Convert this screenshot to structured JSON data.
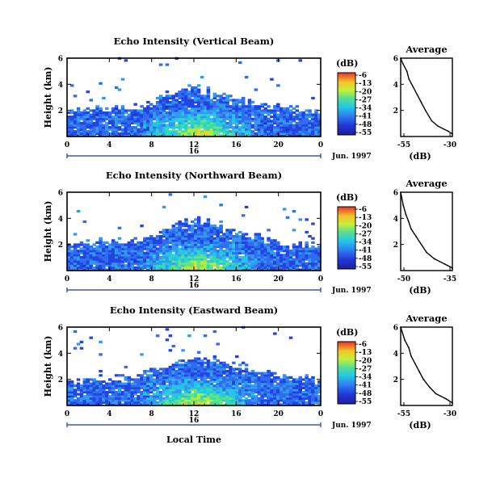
{
  "figure": {
    "xlabel": "Local Time",
    "date_label": "Jun. 1997",
    "day_label": "16"
  },
  "chart_data": [
    {
      "type": "heatmap",
      "title": "Echo Intensity (Vertical Beam)",
      "xlabel": "Local Time",
      "ylabel": "Height (km)",
      "x_ticks": [
        "0",
        "4",
        "8",
        "12",
        "16",
        "20",
        "0"
      ],
      "y_ticks": [
        "2",
        "4",
        "6"
      ],
      "xlim": [
        0,
        24
      ],
      "ylim": [
        0,
        6
      ],
      "colorbar": {
        "label": "(dB)",
        "ticks": [
          "-6",
          "-13",
          "-20",
          "-27",
          "-34",
          "-41",
          "-48",
          "-55"
        ],
        "range": [
          -55,
          -6
        ]
      },
      "profile_envelope": [
        {
          "time": 0,
          "top_km": 1.8
        },
        {
          "time": 3,
          "top_km": 2.2
        },
        {
          "time": 6,
          "top_km": 2.1
        },
        {
          "time": 9,
          "top_km": 3.0
        },
        {
          "time": 11,
          "top_km": 3.8
        },
        {
          "time": 13,
          "top_km": 3.6
        },
        {
          "time": 15,
          "top_km": 3.1
        },
        {
          "time": 18,
          "top_km": 2.5
        },
        {
          "time": 21,
          "top_km": 2.2
        },
        {
          "time": 24,
          "top_km": 1.9
        }
      ],
      "average": {
        "title": "Average",
        "xlabel": "(dB)",
        "x_ticks": [
          "-55",
          "-30"
        ],
        "y_ticks": [
          "2",
          "4",
          "6"
        ],
        "xlim": [
          -55,
          -30
        ],
        "ylim": [
          0,
          6
        ],
        "points": [
          {
            "db": -29.0,
            "height_km": 0.2
          },
          {
            "db": -32.0,
            "height_km": 0.4
          },
          {
            "db": -37.0,
            "height_km": 0.8
          },
          {
            "db": -40.0,
            "height_km": 1.2
          },
          {
            "db": -43.0,
            "height_km": 2.0
          },
          {
            "db": -45.0,
            "height_km": 2.6
          },
          {
            "db": -47.0,
            "height_km": 3.2
          },
          {
            "db": -49.0,
            "height_km": 3.8
          },
          {
            "db": -51.0,
            "height_km": 4.4
          },
          {
            "db": -52.0,
            "height_km": 5.0
          },
          {
            "db": -54.0,
            "height_km": 5.6
          },
          {
            "db": -55.0,
            "height_km": 6.0
          }
        ]
      }
    },
    {
      "type": "heatmap",
      "title": "Echo Intensity (Northward Beam)",
      "xlabel": "Local Time",
      "ylabel": "Height (km)",
      "x_ticks": [
        "0",
        "4",
        "8",
        "12",
        "16",
        "20",
        "0"
      ],
      "y_ticks": [
        "2",
        "4",
        "6"
      ],
      "xlim": [
        0,
        24
      ],
      "ylim": [
        0,
        6
      ],
      "colorbar": {
        "label": "(dB)",
        "ticks": [
          "-6",
          "-13",
          "-20",
          "-27",
          "-34",
          "-41",
          "-48",
          "-55"
        ],
        "range": [
          -55,
          -6
        ]
      },
      "profile_envelope": [
        {
          "time": 0,
          "top_km": 1.9
        },
        {
          "time": 3,
          "top_km": 2.3
        },
        {
          "time": 6,
          "top_km": 2.2
        },
        {
          "time": 9,
          "top_km": 3.0
        },
        {
          "time": 11,
          "top_km": 3.8
        },
        {
          "time": 13,
          "top_km": 3.9
        },
        {
          "time": 15,
          "top_km": 3.4
        },
        {
          "time": 18,
          "top_km": 2.6
        },
        {
          "time": 21,
          "top_km": 2.0
        },
        {
          "time": 24,
          "top_km": 1.9
        }
      ],
      "average": {
        "title": "Average",
        "xlabel": "(dB)",
        "x_ticks": [
          "-50",
          "-35"
        ],
        "y_ticks": [
          "2",
          "4",
          "6"
        ],
        "xlim": [
          -52,
          -32
        ],
        "ylim": [
          0,
          6
        ],
        "points": [
          {
            "db": -32.0,
            "height_km": 0.2
          },
          {
            "db": -35.0,
            "height_km": 0.5
          },
          {
            "db": -39.0,
            "height_km": 0.9
          },
          {
            "db": -42.0,
            "height_km": 1.4
          },
          {
            "db": -44.0,
            "height_km": 2.0
          },
          {
            "db": -46.0,
            "height_km": 2.6
          },
          {
            "db": -48.0,
            "height_km": 3.2
          },
          {
            "db": -49.0,
            "height_km": 3.8
          },
          {
            "db": -50.0,
            "height_km": 4.3
          },
          {
            "db": -51.0,
            "height_km": 5.0
          },
          {
            "db": -52.0,
            "height_km": 6.0
          }
        ]
      }
    },
    {
      "type": "heatmap",
      "title": "Echo Intensity (Eastward Beam)",
      "xlabel": "Local Time",
      "ylabel": "Height (km)",
      "x_ticks": [
        "0",
        "4",
        "8",
        "12",
        "16",
        "20",
        "0"
      ],
      "y_ticks": [
        "2",
        "4",
        "6"
      ],
      "xlim": [
        0,
        24
      ],
      "ylim": [
        0,
        6
      ],
      "colorbar": {
        "label": "(dB)",
        "ticks": [
          "-6",
          "-13",
          "-20",
          "-27",
          "-34",
          "-41",
          "-48",
          "-55"
        ],
        "range": [
          -55,
          -6
        ]
      },
      "profile_envelope": [
        {
          "time": 0,
          "top_km": 1.8
        },
        {
          "time": 3,
          "top_km": 2.0
        },
        {
          "time": 6,
          "top_km": 2.1
        },
        {
          "time": 9,
          "top_km": 2.8
        },
        {
          "time": 11,
          "top_km": 3.6
        },
        {
          "time": 13,
          "top_km": 3.7
        },
        {
          "time": 15,
          "top_km": 3.3
        },
        {
          "time": 18,
          "top_km": 2.6
        },
        {
          "time": 21,
          "top_km": 2.2
        },
        {
          "time": 24,
          "top_km": 2.0
        }
      ],
      "average": {
        "title": "Average",
        "xlabel": "(dB)",
        "x_ticks": [
          "-55",
          "-30"
        ],
        "y_ticks": [
          "2",
          "4",
          "6"
        ],
        "xlim": [
          -55,
          -30
        ],
        "ylim": [
          0,
          6
        ],
        "points": [
          {
            "db": -29.0,
            "height_km": 0.2
          },
          {
            "db": -33.0,
            "height_km": 0.5
          },
          {
            "db": -38.0,
            "height_km": 0.9
          },
          {
            "db": -41.0,
            "height_km": 1.4
          },
          {
            "db": -44.0,
            "height_km": 2.0
          },
          {
            "db": -46.0,
            "height_km": 2.6
          },
          {
            "db": -48.0,
            "height_km": 3.2
          },
          {
            "db": -50.0,
            "height_km": 3.8
          },
          {
            "db": -51.0,
            "height_km": 4.4
          },
          {
            "db": -53.0,
            "height_km": 5.0
          },
          {
            "db": -55.0,
            "height_km": 6.0
          }
        ]
      }
    }
  ]
}
